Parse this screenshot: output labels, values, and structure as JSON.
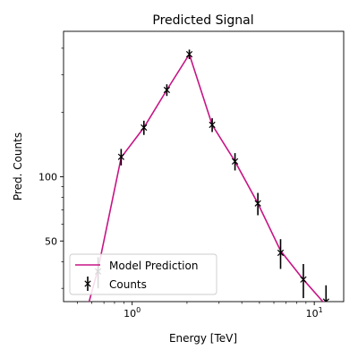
{
  "chart_data": {
    "type": "line",
    "title": "Predicted Signal",
    "xlabel": "Energy [TeV]",
    "ylabel": "Pred. Counts",
    "x_scale": "log",
    "y_scale": "log",
    "xlim": [
      0.42,
      14.5
    ],
    "ylim": [
      26,
      480
    ],
    "x_ticks": [
      {
        "value": 1,
        "label": "10^0"
      },
      {
        "value": 10,
        "label": "10^1"
      }
    ],
    "y_ticks": [
      {
        "value": 50,
        "label": "50"
      },
      {
        "value": 100,
        "label": "100"
      }
    ],
    "legend_position": "lower-left",
    "grid": false,
    "colors": {
      "model": "#c71585",
      "counts": "#000000"
    },
    "series": [
      {
        "name": "Model Prediction",
        "kind": "line",
        "x": [
          0.55,
          0.65,
          0.87,
          1.16,
          1.55,
          2.06,
          2.75,
          3.67,
          4.9,
          6.53,
          8.71,
          11.6,
          14.5
        ],
        "y": [
          22,
          37,
          123,
          170,
          255,
          375,
          175,
          118,
          75,
          45,
          33,
          25,
          20
        ]
      },
      {
        "name": "Counts",
        "kind": "errorbar",
        "x": [
          0.65,
          0.87,
          1.16,
          1.55,
          2.06,
          2.75,
          3.67,
          4.9,
          6.53,
          8.71,
          11.6
        ],
        "y": [
          36,
          124,
          170,
          255,
          375,
          175,
          118,
          75,
          44,
          33,
          26
        ],
        "yerr": [
          6,
          11,
          13,
          16,
          19,
          13,
          11,
          9,
          7,
          6,
          5
        ]
      }
    ]
  }
}
